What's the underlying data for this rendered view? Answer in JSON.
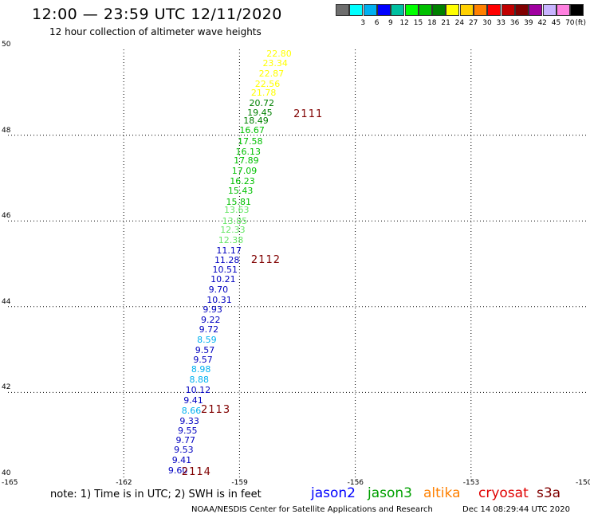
{
  "title": "12:00 — 23:59 UTC 12/11/2020",
  "subtitle": "12 hour collection of altimeter wave heights",
  "color_scale": {
    "unit": "(ft)",
    "bins": [
      {
        "label": "",
        "color": "#6e6e6e"
      },
      {
        "label": "3",
        "color": "#00ffff"
      },
      {
        "label": "6",
        "color": "#00b0f0"
      },
      {
        "label": "9",
        "color": "#0000ff"
      },
      {
        "label": "12",
        "color": "#00c0a0"
      },
      {
        "label": "15",
        "color": "#00ff00"
      },
      {
        "label": "18",
        "color": "#00c000"
      },
      {
        "label": "21",
        "color": "#008000"
      },
      {
        "label": "24",
        "color": "#ffff00"
      },
      {
        "label": "27",
        "color": "#ffd000"
      },
      {
        "label": "30",
        "color": "#ff8000"
      },
      {
        "label": "33",
        "color": "#ff0000"
      },
      {
        "label": "36",
        "color": "#c00000"
      },
      {
        "label": "39",
        "color": "#800000"
      },
      {
        "label": "42",
        "color": "#a000a0"
      },
      {
        "label": "45",
        "color": "#c8b4ff"
      },
      {
        "label": "70",
        "color": "#ff80e0"
      },
      {
        "label": "",
        "color": "#000000"
      }
    ]
  },
  "map": {
    "lon_range": [
      -165,
      -150
    ],
    "lat_range": [
      40,
      50
    ],
    "lon_ticks": [
      "-165",
      "-162",
      "-159",
      "-156",
      "-153",
      "-150"
    ],
    "lat_ticks": [
      "50",
      "48",
      "46",
      "44",
      "42",
      "40"
    ],
    "grid": true
  },
  "wave_heights": [
    {
      "value": "22.80",
      "color": "#ffff00",
      "lon": -158.3,
      "lat": 49.89
    },
    {
      "value": "23.34",
      "color": "#ffff00",
      "lon": -158.4,
      "lat": 49.66
    },
    {
      "value": "22.87",
      "color": "#ffff00",
      "lon": -158.5,
      "lat": 49.43
    },
    {
      "value": "22.56",
      "color": "#ffff00",
      "lon": -158.6,
      "lat": 49.19
    },
    {
      "value": "21.78",
      "color": "#ffff00",
      "lon": -158.7,
      "lat": 48.97
    },
    {
      "value": "20.72",
      "color": "#008000",
      "lon": -158.75,
      "lat": 48.74
    },
    {
      "value": "19.45",
      "color": "#008000",
      "lon": -158.8,
      "lat": 48.52
    },
    {
      "value": "18.49",
      "color": "#008000",
      "lon": -158.9,
      "lat": 48.33
    },
    {
      "value": "16.67",
      "color": "#00c000",
      "lon": -159.0,
      "lat": 48.1
    },
    {
      "value": "17.58",
      "color": "#00c000",
      "lon": -159.05,
      "lat": 47.84
    },
    {
      "value": "16.13",
      "color": "#00c000",
      "lon": -159.1,
      "lat": 47.6
    },
    {
      "value": "17.89",
      "color": "#00c000",
      "lon": -159.15,
      "lat": 47.39
    },
    {
      "value": "17.09",
      "color": "#00c000",
      "lon": -159.2,
      "lat": 47.15
    },
    {
      "value": "16.23",
      "color": "#00c000",
      "lon": -159.25,
      "lat": 46.91
    },
    {
      "value": "15.43",
      "color": "#00c000",
      "lon": -159.3,
      "lat": 46.69
    },
    {
      "value": "15.81",
      "color": "#00c000",
      "lon": -159.35,
      "lat": 46.44
    },
    {
      "value": "13.63",
      "color": "#66e666",
      "lon": -159.4,
      "lat": 46.24
    },
    {
      "value": "13.85",
      "color": "#66e666",
      "lon": -159.45,
      "lat": 45.99
    },
    {
      "value": "12.33",
      "color": "#66e666",
      "lon": -159.5,
      "lat": 45.78
    },
    {
      "value": "12.38",
      "color": "#66e666",
      "lon": -159.55,
      "lat": 45.54
    },
    {
      "value": "11.17",
      "color": "#0000c0",
      "lon": -159.6,
      "lat": 45.3
    },
    {
      "value": "11.28",
      "color": "#0000c0",
      "lon": -159.65,
      "lat": 45.07
    },
    {
      "value": "10.51",
      "color": "#0000c0",
      "lon": -159.7,
      "lat": 44.85
    },
    {
      "value": "10.21",
      "color": "#0000c0",
      "lon": -159.75,
      "lat": 44.62
    },
    {
      "value": "9.70",
      "color": "#0000c0",
      "lon": -159.8,
      "lat": 44.39
    },
    {
      "value": "10.31",
      "color": "#0000c0",
      "lon": -159.85,
      "lat": 44.15
    },
    {
      "value": "9.93",
      "color": "#0000c0",
      "lon": -159.95,
      "lat": 43.92
    },
    {
      "value": "9.22",
      "color": "#0000c0",
      "lon": -160.0,
      "lat": 43.68
    },
    {
      "value": "9.72",
      "color": "#0000c0",
      "lon": -160.05,
      "lat": 43.46
    },
    {
      "value": "8.59",
      "color": "#00b0f0",
      "lon": -160.1,
      "lat": 43.22
    },
    {
      "value": "9.57",
      "color": "#0000c0",
      "lon": -160.15,
      "lat": 42.98
    },
    {
      "value": "9.57",
      "color": "#0000c0",
      "lon": -160.2,
      "lat": 42.76
    },
    {
      "value": "8.98",
      "color": "#00b0f0",
      "lon": -160.25,
      "lat": 42.53
    },
    {
      "value": "8.88",
      "color": "#00b0f0",
      "lon": -160.3,
      "lat": 42.29
    },
    {
      "value": "10.12",
      "color": "#0000c0",
      "lon": -160.4,
      "lat": 42.04
    },
    {
      "value": "9.41",
      "color": "#0000c0",
      "lon": -160.45,
      "lat": 41.81
    },
    {
      "value": "8.66",
      "color": "#00b0f0",
      "lon": -160.5,
      "lat": 41.57
    },
    {
      "value": "9.33",
      "color": "#0000c0",
      "lon": -160.55,
      "lat": 41.32
    },
    {
      "value": "9.55",
      "color": "#0000c0",
      "lon": -160.6,
      "lat": 41.09
    },
    {
      "value": "9.77",
      "color": "#0000c0",
      "lon": -160.65,
      "lat": 40.88
    },
    {
      "value": "9.53",
      "color": "#0000c0",
      "lon": -160.7,
      "lat": 40.65
    },
    {
      "value": "9.41",
      "color": "#0000c0",
      "lon": -160.75,
      "lat": 40.4
    },
    {
      "value": "9.60",
      "color": "#0000c0",
      "lon": -160.85,
      "lat": 40.17
    }
  ],
  "pass_labels": [
    {
      "text": "2111",
      "lon": -157.6,
      "lat": 48.5
    },
    {
      "text": "2112",
      "lon": -158.7,
      "lat": 45.1
    },
    {
      "text": "2113",
      "lon": -160.0,
      "lat": 41.6
    },
    {
      "text": "2114",
      "lon": -160.5,
      "lat": 40.15
    }
  ],
  "note": "note: 1) Time is in UTC; 2) SWH is in feet",
  "satellites": [
    {
      "name": "jason2",
      "color": "#0000ff"
    },
    {
      "name": "jason3",
      "color": "#00a000"
    },
    {
      "name": "altika",
      "color": "#ff8000"
    },
    {
      "name": "cryosat",
      "color": "#e00000"
    },
    {
      "name": "s3a",
      "color": "#800000"
    }
  ],
  "credit": "NOAA/NESDIS Center for Satellite Applications and Research",
  "timestamp": "Dec 14 08:29:44 UTC 2020"
}
